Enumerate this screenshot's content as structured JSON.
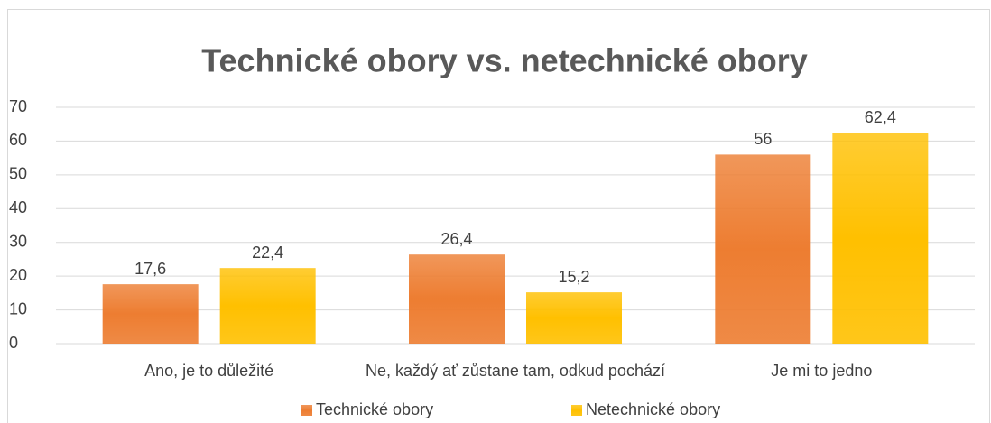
{
  "chart_data": {
    "type": "bar",
    "title": "Technické obory vs. netechnické obory",
    "categories": [
      "Ano, je to důležité",
      "Ne, každý ať zůstane tam, odkud pochází",
      "Je mi to jedno"
    ],
    "series": [
      {
        "name": "Technické obory",
        "color": "#ed7d31",
        "values": [
          17.6,
          26.4,
          56
        ],
        "value_labels": [
          "17,6",
          "26,4",
          "56"
        ]
      },
      {
        "name": "Netechnické obory",
        "color": "#ffc000",
        "values": [
          22.4,
          15.2,
          62.4
        ],
        "value_labels": [
          "22,4",
          "15,2",
          "62,4"
        ]
      }
    ],
    "ylim": [
      0,
      70
    ],
    "yticks": [
      0,
      10,
      20,
      30,
      40,
      50,
      60,
      70
    ],
    "grid": true,
    "legend": "bottom"
  }
}
